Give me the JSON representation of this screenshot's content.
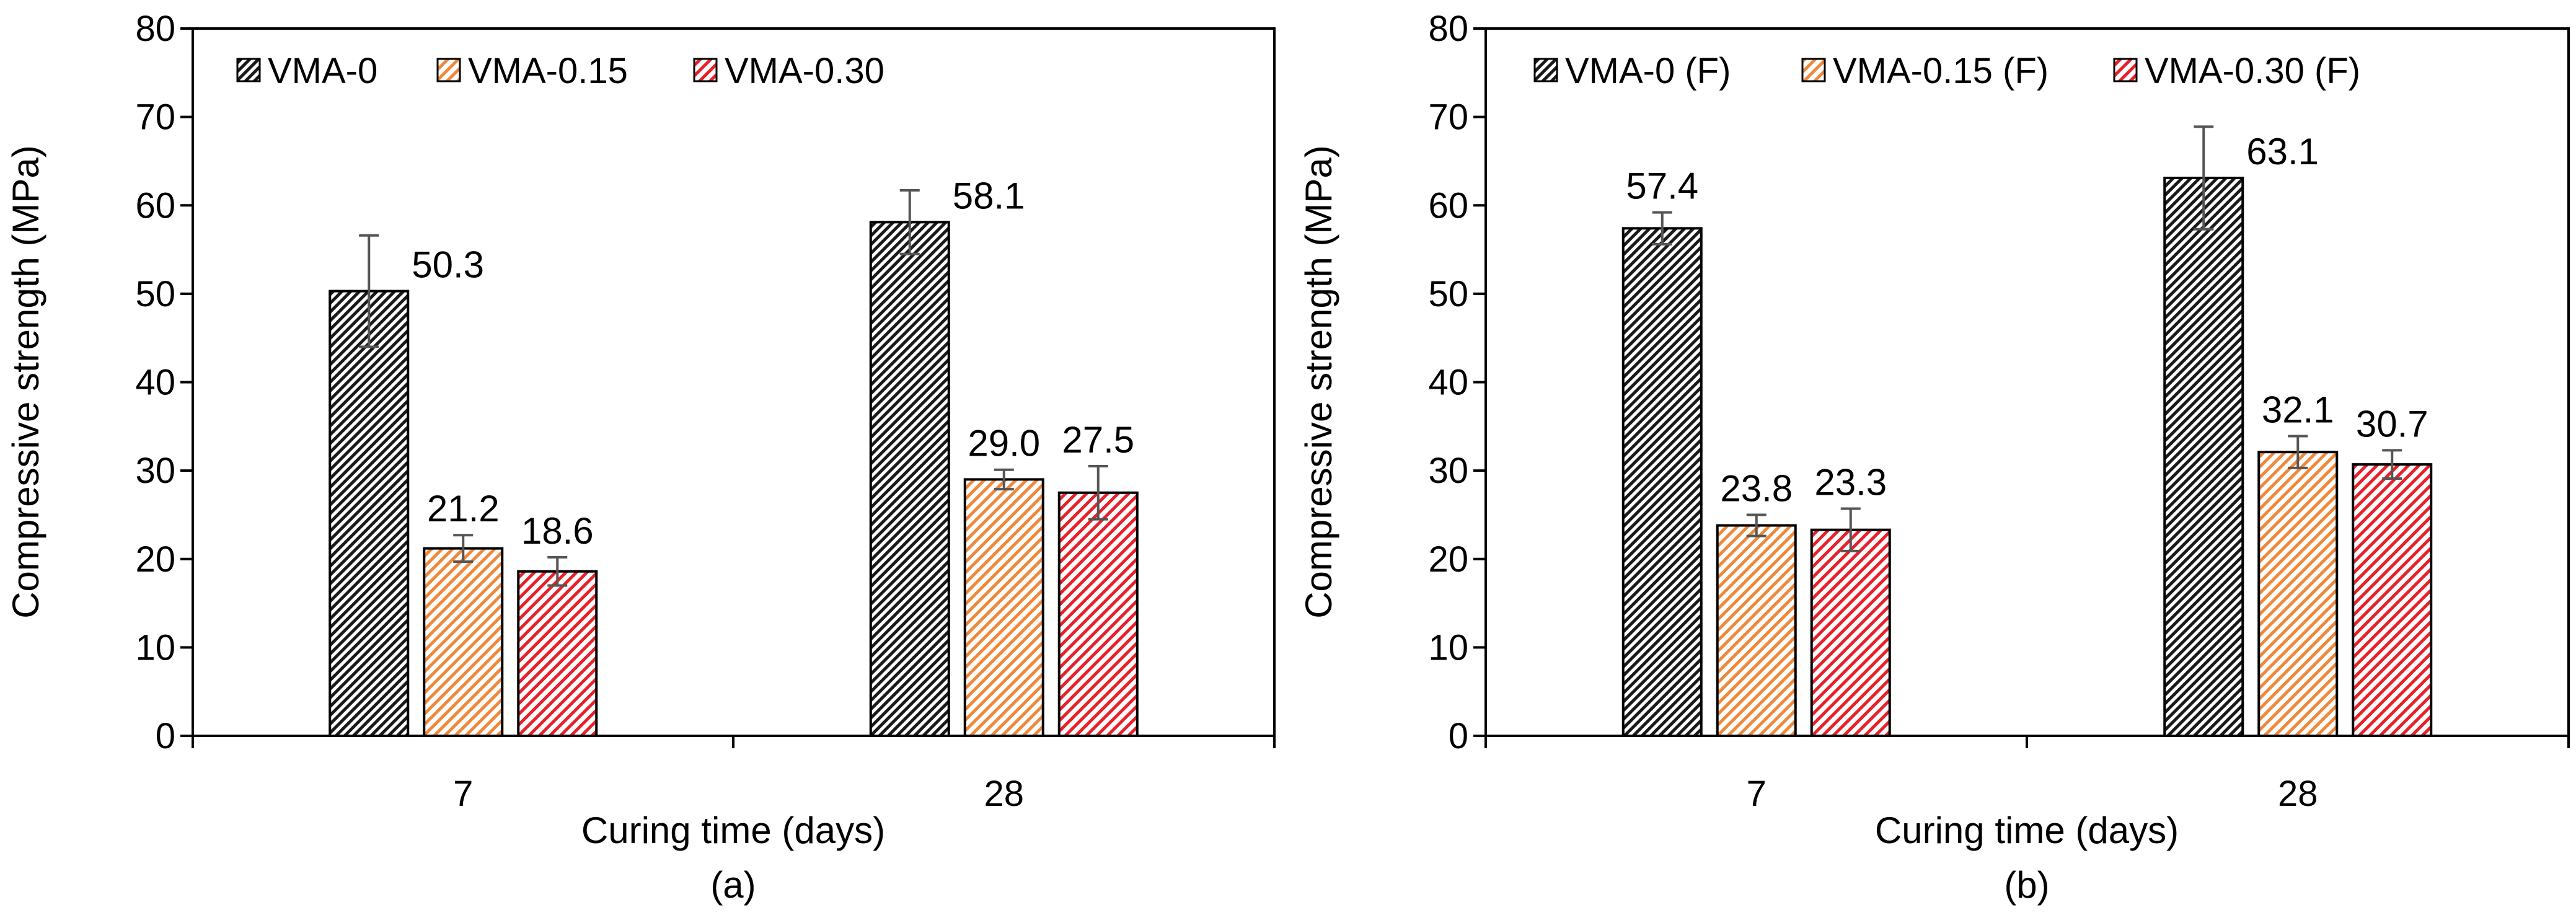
{
  "chart_data": [
    {
      "type": "bar",
      "panel": "(a)",
      "categories": [
        "7",
        "28"
      ],
      "series": [
        {
          "name": "VMA-0",
          "values": [
            50.3,
            58.1
          ],
          "errors": [
            6.3,
            3.6
          ],
          "labels": [
            "50.3",
            "58.1"
          ],
          "color": "#000000"
        },
        {
          "name": "VMA-0.15",
          "values": [
            21.2,
            29.0
          ],
          "errors": [
            1.5,
            1.1
          ],
          "labels": [
            "21.2",
            "29.0"
          ],
          "color": "#f0883a"
        },
        {
          "name": "VMA-0.30",
          "values": [
            18.6,
            27.5
          ],
          "errors": [
            1.6,
            3.0
          ],
          "labels": [
            "18.6",
            "27.5"
          ],
          "color": "#e8202a"
        }
      ],
      "xlabel": "Curing time (days)",
      "ylabel": "Compressive strength (MPa)",
      "ylim": [
        0,
        80
      ],
      "yticks": [
        "0",
        "10",
        "20",
        "30",
        "40",
        "50",
        "60",
        "70",
        "80"
      ],
      "legend": "top-left"
    },
    {
      "type": "bar",
      "panel": "(b)",
      "categories": [
        "7",
        "28"
      ],
      "series": [
        {
          "name": "VMA-0 (F)",
          "values": [
            57.4,
            63.1
          ],
          "errors": [
            1.8,
            5.8
          ],
          "labels": [
            "57.4",
            "63.1"
          ],
          "color": "#000000"
        },
        {
          "name": "VMA-0.15 (F)",
          "values": [
            23.8,
            32.1
          ],
          "errors": [
            1.2,
            1.8
          ],
          "labels": [
            "23.8",
            "32.1"
          ],
          "color": "#f0883a"
        },
        {
          "name": "VMA-0.30 (F)",
          "values": [
            23.3,
            30.7
          ],
          "errors": [
            2.4,
            1.6
          ],
          "labels": [
            "23.3",
            "30.7"
          ],
          "color": "#e8202a"
        }
      ],
      "xlabel": "Curing time (days)",
      "ylabel": "Compressive strength (MPa)",
      "ylim": [
        0,
        80
      ],
      "yticks": [
        "0",
        "10",
        "20",
        "30",
        "40",
        "50",
        "60",
        "70",
        "80"
      ],
      "legend": "top-left"
    }
  ]
}
